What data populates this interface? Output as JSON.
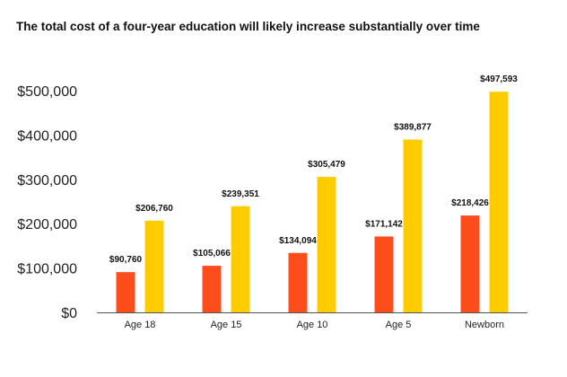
{
  "chart_data": {
    "type": "bar",
    "title": "The total cost of a four-year education will likely increase substantially over time",
    "xlabel": "",
    "ylabel": "",
    "categories": [
      "Age 18",
      "Age 15",
      "Age 10",
      "Age 5",
      "Newborn"
    ],
    "series": [
      {
        "color": "#ff4c1b",
        "values": [
          90760,
          105066,
          134094,
          171142,
          218426
        ],
        "labels": [
          "$90,760",
          "$105,066",
          "$134,094",
          "$171,142",
          "$218,426"
        ]
      },
      {
        "color": "#ffcc00",
        "values": [
          206760,
          239351,
          305479,
          389877,
          497593
        ],
        "labels": [
          "$206,760",
          "$239,351",
          "$305,479",
          "$389,877",
          "$497,593"
        ]
      }
    ],
    "ylim": [
      0,
      500000
    ],
    "yticks": [
      0,
      100000,
      200000,
      300000,
      400000,
      500000
    ],
    "ytick_labels": [
      "$0",
      "$100,000",
      "$200,000",
      "$300,000",
      "$400,000",
      "$500,000"
    ],
    "grid": false,
    "legend": "none"
  }
}
